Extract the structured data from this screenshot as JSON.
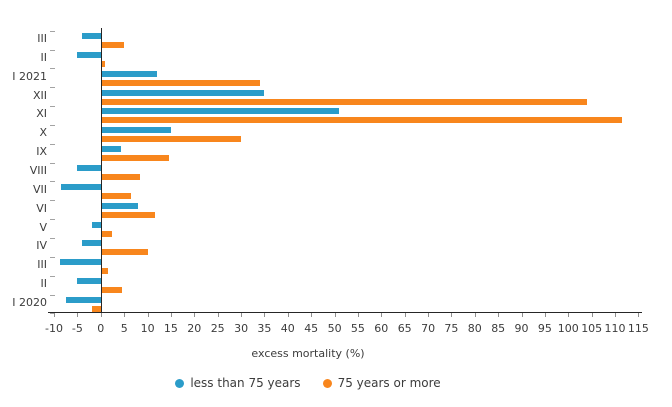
{
  "chart_data": {
    "type": "bar",
    "orientation": "horizontal",
    "grouped": true,
    "title": "",
    "xlabel": "excess mortality (%)",
    "xlim": [
      -10,
      115
    ],
    "xticks": [
      -10,
      -5,
      0,
      5,
      10,
      15,
      20,
      25,
      30,
      35,
      40,
      45,
      50,
      55,
      60,
      65,
      70,
      75,
      80,
      85,
      90,
      95,
      100,
      105,
      110,
      115
    ],
    "categories": [
      "III",
      "II",
      "I 2021",
      "XII",
      "XI",
      "X",
      "IX",
      "VIII",
      "VII",
      "VI",
      "V",
      "IV",
      "III",
      "II",
      "I 2020"
    ],
    "series": [
      {
        "name": "less than 75 years",
        "color": "#2B9CC9",
        "values": [
          -4,
          -5,
          12,
          35,
          51,
          15,
          4.3,
          -5,
          -8.5,
          8,
          -2,
          -4,
          -8.7,
          -5,
          -7.5
        ]
      },
      {
        "name": "75 years or more",
        "color": "#F8861D",
        "values": [
          5,
          1,
          34,
          104,
          111.5,
          30,
          14.5,
          8.5,
          6.5,
          11.5,
          2.5,
          10,
          1.5,
          4.5,
          -1.8
        ]
      }
    ],
    "legend_position": "bottom",
    "grid": false
  }
}
